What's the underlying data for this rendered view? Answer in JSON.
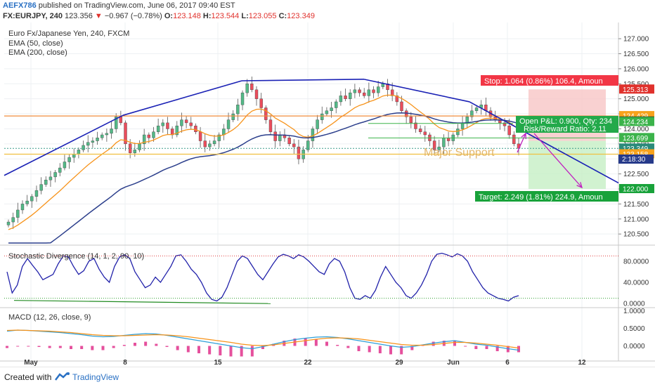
{
  "header": {
    "author": "AEFX786",
    "published_text": "published on TradingView.com, June 06, 2017 09:40 EST",
    "symbol": "FX:EURJPY, 240",
    "last": "123.356",
    "change": "−0.967 (−0.78%)",
    "o_label": "O:",
    "o_value": "123.148",
    "h_label": "H:",
    "h_value": "123.544",
    "l_label": "L:",
    "l_value": "123.055",
    "c_label": "C:",
    "c_value": "123.349"
  },
  "legend": {
    "title": "Euro Fx/Japanese Yen, 240, FXCM",
    "ema50": "EMA (50, close)",
    "ema200": "EMA (200, close)",
    "stoch": "Stochastic Divergence (14, 1, 2, 90, 10)",
    "macd": "MACD (12, 26, close, 9)"
  },
  "annotations": {
    "stop": "Stop: 1.064 (0.86%) 106.4, Amoun",
    "pnl": "Open P&L: 0.900, Qty: 234",
    "rr": "Risk/Reward Ratio: 2.11",
    "target": "Target: 2.249 (1.81%) 224.9, Amoun",
    "support": "Major Support",
    "time_left": "2:18:30"
  },
  "price_labels": [
    {
      "value": 125.313,
      "text": "125.313",
      "color": "#e0312c"
    },
    {
      "value": 124.429,
      "text": "124.429",
      "color": "#f7a21b"
    },
    {
      "value": 124.249,
      "text": "124.249",
      "color": "#222222"
    },
    {
      "value": 124.234,
      "text": "124.234",
      "color": "#3bb34a"
    },
    {
      "value": 123.699,
      "text": "123.699",
      "color": "#3bb34a"
    },
    {
      "value": 123.349,
      "text": "123.349",
      "color": "#2a8a7a"
    },
    {
      "value": 123.158,
      "text": "123.158",
      "color": "#f7a21b"
    },
    {
      "value": 122.0,
      "text": "122.000",
      "color": "#18a23a"
    }
  ],
  "colors": {
    "up": "#53b987",
    "down": "#eb4d5c",
    "trend": "#1a21b5",
    "ema50": "#f7931a",
    "ema200": "#2c3f8c",
    "hline": "#f08c3c",
    "support": "#f0c040",
    "stop_fill": "#f7c5c5",
    "target_fill": "#c6efc4",
    "stoch": "#2222aa",
    "macd": "#2f9fd8",
    "signal": "#f7931a",
    "hist": "#e0318c"
  },
  "chart_data": [
    {
      "type": "candlestick",
      "title": "Euro Fx/Japanese Yen, 240, FXCM",
      "x_ticks": [
        "May",
        "8",
        "15",
        "22",
        "29",
        "Jun",
        "6",
        "12"
      ],
      "y_ticks": [
        120.5,
        121.0,
        121.5,
        122.0,
        122.5,
        123.0,
        123.5,
        124.0,
        124.5,
        125.0,
        125.5,
        126.0,
        126.5,
        127.0
      ],
      "ylim": [
        120.2,
        127.4
      ],
      "close": [
        120.9,
        121.05,
        121.3,
        121.5,
        121.6,
        121.75,
        121.95,
        122.15,
        122.3,
        122.4,
        122.55,
        122.7,
        122.9,
        123.05,
        123.15,
        123.3,
        123.45,
        123.55,
        123.6,
        123.7,
        123.8,
        123.85,
        124.0,
        124.4,
        124.2,
        123.5,
        123.2,
        123.3,
        123.5,
        123.8,
        123.7,
        123.9,
        124.1,
        124.2,
        124.0,
        123.8,
        124.1,
        124.3,
        124.2,
        124.1,
        123.9,
        123.6,
        123.4,
        123.5,
        123.6,
        123.8,
        124.0,
        124.3,
        124.5,
        124.8,
        125.2,
        125.5,
        125.3,
        125.0,
        124.7,
        124.3,
        123.9,
        123.6,
        123.8,
        123.7,
        123.5,
        123.4,
        123.0,
        123.3,
        123.6,
        124.0,
        124.3,
        124.5,
        124.6,
        124.7,
        124.9,
        125.1,
        125.0,
        125.2,
        125.3,
        125.2,
        125.1,
        125.3,
        125.2,
        125.4,
        125.5,
        125.3,
        125.1,
        124.9,
        124.6,
        124.4,
        124.2,
        124.0,
        123.9,
        123.8,
        123.6,
        123.3,
        123.4,
        123.7,
        123.6,
        123.8,
        124.0,
        124.2,
        124.4,
        124.6,
        124.7,
        124.8,
        124.6,
        124.4,
        124.3,
        124.2,
        124.1,
        123.8,
        123.5,
        123.35
      ],
      "ema50_last": 124.43,
      "ema200_last": 123.35,
      "trendlines": [
        {
          "from": [
            "start",
            122.45
          ],
          "to": [
            "May 12",
            124.45
          ]
        },
        {
          "from": [
            "May 12",
            124.45
          ],
          "to": [
            "May 17",
            125.6
          ]
        },
        {
          "from": [
            "May 17",
            125.6
          ],
          "to": [
            "May 25",
            125.65
          ]
        },
        {
          "from": [
            "May 25",
            125.65
          ],
          "to": [
            "Jun 2",
            124.9
          ]
        },
        {
          "from": [
            "Jun 2",
            124.9
          ],
          "to": [
            "Jun 14",
            122.2
          ]
        }
      ],
      "hlines": [
        124.429,
        123.158,
        123.349
      ],
      "position": {
        "entry": 123.6,
        "stop": 125.313,
        "target": 122.0
      }
    },
    {
      "type": "line",
      "title": "Stochastic Divergence (14, 1, 2, 90, 10)",
      "y_ticks": [
        0.0,
        40.0,
        80.0
      ],
      "ylim": [
        -5,
        105
      ],
      "levels": [
        90,
        10
      ],
      "values": [
        60,
        20,
        35,
        70,
        85,
        72,
        60,
        45,
        50,
        55,
        75,
        90,
        88,
        70,
        55,
        62,
        80,
        85,
        65,
        50,
        40,
        70,
        88,
        92,
        85,
        60,
        45,
        30,
        35,
        50,
        40,
        55,
        70,
        90,
        92,
        80,
        65,
        55,
        40,
        20,
        8,
        5,
        12,
        30,
        55,
        80,
        90,
        85,
        70,
        55,
        45,
        60,
        75,
        88,
        93,
        90,
        85,
        92,
        88,
        80,
        70,
        60,
        55,
        75,
        85,
        80,
        60,
        30,
        10,
        8,
        15,
        10,
        25,
        50,
        70,
        55,
        40,
        30,
        15,
        10,
        20,
        35,
        55,
        80,
        93,
        95,
        92,
        88,
        94,
        90,
        80,
        60,
        45,
        30,
        20,
        15,
        10,
        8,
        5,
        12,
        15
      ]
    },
    {
      "type": "line",
      "title": "MACD (12, 26, close, 9)",
      "y_ticks": [
        0.0,
        0.5,
        1.0
      ],
      "ylim": [
        -0.35,
        1.05
      ],
      "macd": [
        0.42,
        0.45,
        0.44,
        0.42,
        0.4,
        0.38,
        0.35,
        0.32,
        0.28,
        0.26,
        0.27,
        0.3,
        0.33,
        0.35,
        0.34,
        0.3,
        0.25,
        0.2,
        0.15,
        0.1,
        0.05,
        0.0,
        -0.05,
        -0.08,
        -0.02,
        0.05,
        0.12,
        0.18,
        0.22,
        0.25,
        0.26,
        0.24,
        0.2,
        0.15,
        0.1,
        0.05,
        0.0,
        -0.04,
        -0.02,
        0.03,
        0.08,
        0.12,
        0.15,
        0.1,
        0.05,
        0.02,
        -0.03,
        -0.08,
        -0.12
      ],
      "signal": [
        0.44,
        0.45,
        0.44,
        0.43,
        0.42,
        0.4,
        0.38,
        0.35,
        0.32,
        0.3,
        0.29,
        0.29,
        0.3,
        0.31,
        0.32,
        0.31,
        0.29,
        0.26,
        0.22,
        0.18,
        0.14,
        0.1,
        0.05,
        0.02,
        0.01,
        0.03,
        0.07,
        0.11,
        0.15,
        0.19,
        0.22,
        0.23,
        0.22,
        0.2,
        0.16,
        0.12,
        0.08,
        0.04,
        0.02,
        0.02,
        0.04,
        0.07,
        0.1,
        0.1,
        0.08,
        0.05,
        0.02,
        -0.02,
        -0.06
      ]
    }
  ]
}
